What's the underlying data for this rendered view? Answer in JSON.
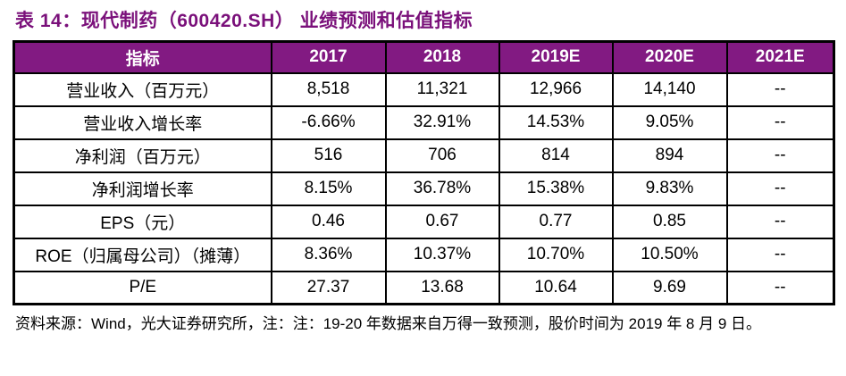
{
  "title": "表 14：现代制药（600420.SH） 业绩预测和估值指标",
  "colors": {
    "title_text": "#7a107a",
    "header_background": "#821a82",
    "header_text": "#ffffff",
    "grid_border": "#000000",
    "body_text": "#000000",
    "page_background": "#ffffff"
  },
  "table": {
    "columns": [
      "指标",
      "2017",
      "2018",
      "2019E",
      "2020E",
      "2021E"
    ],
    "rows": [
      {
        "label": "营业收入（百万元）",
        "values": [
          "8,518",
          "11,321",
          "12,966",
          "14,140",
          "--"
        ]
      },
      {
        "label": "营业收入增长率",
        "values": [
          "-6.66%",
          "32.91%",
          "14.53%",
          "9.05%",
          "--"
        ]
      },
      {
        "label": "净利润（百万元）",
        "values": [
          "516",
          "706",
          "814",
          "894",
          "--"
        ]
      },
      {
        "label": "净利润增长率",
        "values": [
          "8.15%",
          "36.78%",
          "15.38%",
          "9.83%",
          "--"
        ]
      },
      {
        "label": "EPS（元）",
        "values": [
          "0.46",
          "0.67",
          "0.77",
          "0.85",
          "--"
        ]
      },
      {
        "label": "ROE（归属母公司）（摊薄）",
        "values": [
          "8.36%",
          "10.37%",
          "10.70%",
          "10.50%",
          "--"
        ]
      },
      {
        "label": "P/E",
        "values": [
          "27.37",
          "13.68",
          "10.64",
          "9.69",
          "--"
        ]
      }
    ]
  },
  "footer": {
    "source_note": "资料来源：Wind，光大证券研究所，注：注：19-20 年数据来自万得一致预测，股价时间为 2019 年 8 月 9 日。"
  }
}
